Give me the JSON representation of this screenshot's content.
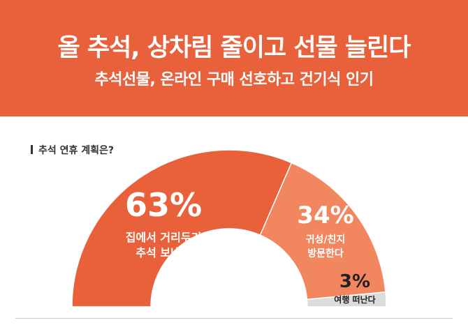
{
  "header": {
    "title": "올 추석, 상차림 줄이고 선물 늘린다",
    "subtitle": "추석선물, 온라인 구매 선호하고 건기식 인기"
  },
  "colors": {
    "banner": "#e8613a",
    "slice_main": "#e8613a",
    "slice_secondary": "#f2875f",
    "slice_small": "#dcdcdc"
  },
  "chart_data": {
    "type": "pie",
    "variant": "half-donut",
    "title": "추석 연휴 계획은?",
    "unit": "%",
    "categories": [
      "집에서 거리두기 추석 보낸다",
      "귀성/친지 방문한다",
      "여행 떠난다"
    ],
    "values": [
      63,
      34,
      3
    ],
    "labels": [
      {
        "pct": "63%",
        "lines": [
          "집에서 거리두기",
          "추석 보낸다"
        ]
      },
      {
        "pct": "34%",
        "lines": [
          "귀성/친지",
          "방문한다"
        ]
      },
      {
        "pct": "3%",
        "lines": [
          "여행 떠난다"
        ]
      }
    ]
  }
}
